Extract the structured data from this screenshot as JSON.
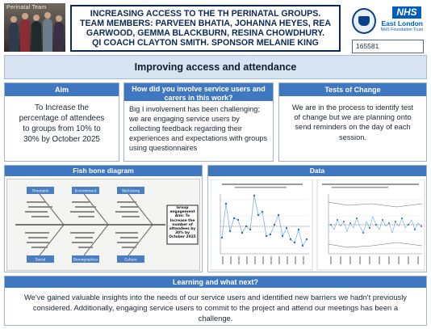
{
  "photo": {
    "caption": "Perinatal Team"
  },
  "header": {
    "title_lines": [
      "INCREASING ACCESS TO THE TH PERINATAL GROUPS.",
      "TEAM MEMBERS: PARVEEN BHATIA, JOHANNA HEYES, REA",
      "GARWOOD, GEMMA BLACKBURN, RESINA CHOWDHURY.",
      "QI COACH CLAYTON SMITH. SPONSOR MELANIE KING"
    ]
  },
  "nhs": {
    "logo": "NHS",
    "org": "East London",
    "org_sub": "NHS Foundation Trust"
  },
  "reference": "165581",
  "banner": "Improving access and attendance",
  "aim": {
    "heading": "Aim",
    "body": "To Increase the percentage of attendees to groups from 10% to 30% by October 2025"
  },
  "involvement": {
    "heading": "How did you involve service users and carers in this work?",
    "body": "Big I involvement has been challenging; we are engaging service users by collecting feedback regarding their experiences and expectations with groups using questionnaires"
  },
  "tests": {
    "heading": "Tests of Change",
    "body": "We are in the process to identify test of change but we are planning onto send reminders on the day of each session."
  },
  "fishbone": {
    "heading": "Fish bone diagram",
    "categories": [
      "Timetable",
      "Environment",
      "Well-being",
      "Social",
      "Demographics",
      "Culture"
    ],
    "goal": "Group engagement Aim: To Increase the number of attendees by 30% by October 2025"
  },
  "data": {
    "heading": "Data"
  },
  "learning": {
    "heading": "Learning and what next?",
    "body": "We've gained valuable insights into the needs of our service users and identified new barriers we hadn't previously considered. Additionally, engaging service users to commit to the project and attend our meetings has been a challenge."
  }
}
